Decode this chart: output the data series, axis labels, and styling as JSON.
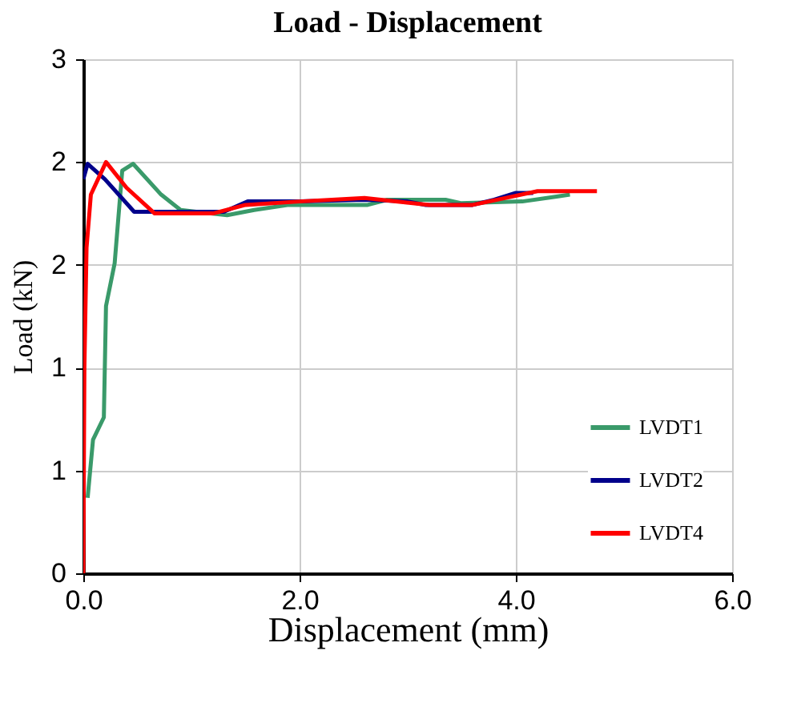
{
  "chart_data": {
    "type": "line",
    "title": "Load - Displacement",
    "xlabel": "Displacement (mm)",
    "ylabel": "Load (kN)",
    "xlim": [
      0,
      6
    ],
    "ylim": [
      0,
      3
    ],
    "xticks": [
      {
        "value": 0,
        "label": "0.0"
      },
      {
        "value": 2,
        "label": "2.0"
      },
      {
        "value": 4,
        "label": "4.0"
      },
      {
        "value": 6,
        "label": "6.0"
      }
    ],
    "yticks": [
      {
        "value": 0,
        "label": "0"
      },
      {
        "value": 0.6,
        "label": "1"
      },
      {
        "value": 1.2,
        "label": "1"
      },
      {
        "value": 1.8,
        "label": "2"
      },
      {
        "value": 2.4,
        "label": "2"
      },
      {
        "value": 3,
        "label": "3"
      }
    ],
    "grid": true,
    "legend": "bottom right",
    "marker": "none",
    "line_style": "solid",
    "series": [
      {
        "name": "LVDT1",
        "color": "#3a9a6a",
        "x": [
          0.04,
          0.09,
          0.19,
          0.21,
          0.29,
          0.36,
          0.46,
          0.72,
          0.9,
          1.33,
          1.58,
          1.9,
          2.3,
          2.63,
          2.81,
          3.35,
          3.49,
          4.06,
          4.39,
          4.5
        ],
        "values": [
          0.44,
          0.78,
          0.91,
          1.56,
          1.81,
          2.35,
          2.39,
          2.21,
          2.12,
          2.09,
          2.12,
          2.15,
          2.15,
          2.15,
          2.18,
          2.18,
          2.16,
          2.17,
          2.2,
          2.21
        ]
      },
      {
        "name": "LVDT2",
        "color": "#00008b",
        "x": [
          0,
          0.04,
          0.2,
          0.47,
          0.9,
          1.3,
          1.52,
          2.0,
          2.6,
          3.0,
          3.16,
          3.6,
          3.8,
          4.0,
          4.16
        ],
        "values": [
          2.3,
          2.39,
          2.3,
          2.11,
          2.11,
          2.11,
          2.17,
          2.17,
          2.18,
          2.17,
          2.15,
          2.15,
          2.18,
          2.22,
          2.22
        ]
      },
      {
        "name": "LVDT4",
        "color": "#ff0000",
        "x": [
          0,
          0.01,
          0.03,
          0.07,
          0.21,
          0.4,
          0.66,
          1.2,
          1.5,
          2.0,
          2.6,
          3.2,
          3.6,
          3.9,
          4.2,
          4.75
        ],
        "values": [
          0,
          1.2,
          1.9,
          2.21,
          2.4,
          2.25,
          2.1,
          2.1,
          2.15,
          2.17,
          2.19,
          2.15,
          2.15,
          2.19,
          2.23,
          2.23
        ]
      }
    ]
  }
}
